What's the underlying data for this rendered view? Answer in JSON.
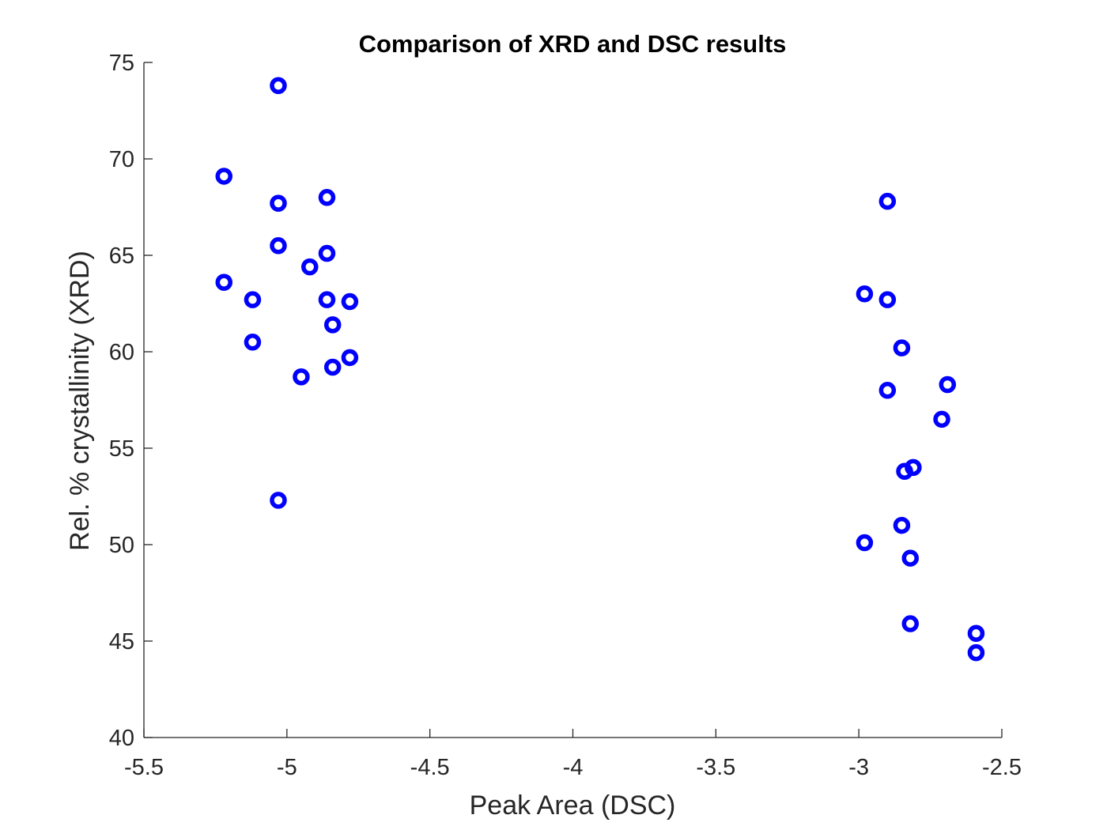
{
  "chart_data": {
    "type": "scatter",
    "title": "Comparison of XRD and DSC results",
    "xlabel": "Peak Area (DSC)",
    "ylabel": "Rel. % crystallinity (XRD)",
    "xlim": [
      -5.5,
      -2.5
    ],
    "ylim": [
      40,
      75
    ],
    "xticks": [
      -5.5,
      -5,
      -4.5,
      -4,
      -3.5,
      -3,
      -2.5
    ],
    "xtick_labels": [
      "-5.5",
      "-5",
      "-4.5",
      "-4",
      "-3.5",
      "-3",
      "-2.5"
    ],
    "yticks": [
      40,
      45,
      50,
      55,
      60,
      65,
      70,
      75
    ],
    "ytick_labels": [
      "40",
      "45",
      "50",
      "55",
      "60",
      "65",
      "70",
      "75"
    ],
    "grid": false,
    "marker": "open-circle",
    "marker_color": "#0000ff",
    "series": [
      {
        "points": [
          [
            -5.03,
            73.8
          ],
          [
            -5.22,
            69.1
          ],
          [
            -5.03,
            67.7
          ],
          [
            -4.86,
            68.0
          ],
          [
            -5.03,
            65.5
          ],
          [
            -4.86,
            65.1
          ],
          [
            -4.92,
            64.4
          ],
          [
            -5.22,
            63.6
          ],
          [
            -5.12,
            62.7
          ],
          [
            -4.86,
            62.7
          ],
          [
            -4.78,
            62.6
          ],
          [
            -4.84,
            61.4
          ],
          [
            -5.12,
            60.5
          ],
          [
            -4.78,
            59.7
          ],
          [
            -4.84,
            59.2
          ],
          [
            -4.95,
            58.7
          ],
          [
            -5.03,
            52.3
          ],
          [
            -2.9,
            67.8
          ],
          [
            -2.98,
            63.0
          ],
          [
            -2.9,
            62.7
          ],
          [
            -2.85,
            60.2
          ],
          [
            -2.69,
            58.3
          ],
          [
            -2.9,
            58.0
          ],
          [
            -2.71,
            56.5
          ],
          [
            -2.81,
            54.0
          ],
          [
            -2.84,
            53.8
          ],
          [
            -2.85,
            51.0
          ],
          [
            -2.98,
            50.1
          ],
          [
            -2.82,
            49.3
          ],
          [
            -2.82,
            45.9
          ],
          [
            -2.59,
            45.4
          ],
          [
            -2.59,
            44.4
          ]
        ]
      }
    ]
  }
}
